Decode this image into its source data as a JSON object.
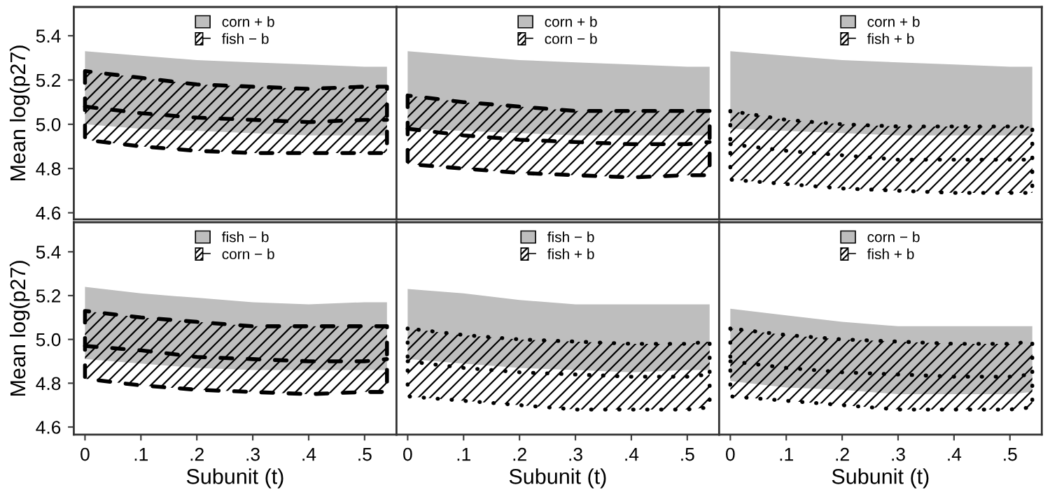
{
  "chart_data": [
    {
      "type": "area",
      "ylabel": "Mean log(p27)",
      "x": [
        0,
        0.1,
        0.2,
        0.3,
        0.4,
        0.5,
        0.54
      ],
      "xlim": [
        -0.02,
        0.557
      ],
      "ylim": [
        4.57,
        5.53
      ],
      "yticks": [
        4.6,
        4.8,
        {
          "value": 5,
          "label": "5.0"
        },
        5.2,
        5.4
      ],
      "tick_labels": "y",
      "legend": "top",
      "series": [
        {
          "name": "corn + b",
          "color": "#bebebe",
          "values": [
            null,
            null,
            null,
            null,
            null,
            null,
            null
          ],
          "upper": [
            5.33,
            5.31,
            5.29,
            5.28,
            5.27,
            5.26,
            5.26
          ],
          "lower": [
            5.0,
            4.98,
            4.97,
            4.96,
            4.95,
            4.95,
            4.95
          ]
        },
        {
          "name": "fish − b",
          "type": "line",
          "color": "#000000",
          "line_style": "dashed",
          "values": [
            5.08,
            5.05,
            5.03,
            5.02,
            5.01,
            5.02,
            5.02
          ],
          "upper": [
            5.24,
            5.21,
            5.18,
            5.17,
            5.16,
            5.17,
            5.17
          ],
          "lower": [
            4.93,
            4.9,
            4.88,
            4.87,
            4.87,
            4.87,
            4.87
          ]
        }
      ]
    },
    {
      "type": "area",
      "x": [
        0,
        0.1,
        0.2,
        0.3,
        0.4,
        0.5,
        0.54
      ],
      "xlim": [
        -0.02,
        0.557
      ],
      "ylim": [
        4.57,
        5.53
      ],
      "tick_labels": false,
      "legend": "top",
      "series": [
        {
          "name": "corn + b",
          "color": "#bebebe",
          "values": [
            null,
            null,
            null,
            null,
            null,
            null,
            null
          ],
          "upper": [
            5.33,
            5.31,
            5.29,
            5.28,
            5.27,
            5.26,
            5.26
          ],
          "lower": [
            4.98,
            4.97,
            4.96,
            4.95,
            4.95,
            4.95,
            4.95
          ]
        },
        {
          "name": "corn − b",
          "type": "line",
          "color": "#000000",
          "line_style": "dashed",
          "values": [
            4.98,
            4.95,
            4.93,
            4.92,
            4.91,
            4.91,
            4.92
          ],
          "upper": [
            5.13,
            5.1,
            5.08,
            5.06,
            5.06,
            5.06,
            5.06
          ],
          "lower": [
            4.82,
            4.8,
            4.78,
            4.77,
            4.76,
            4.77,
            4.77
          ]
        }
      ]
    },
    {
      "type": "area",
      "x": [
        0,
        0.1,
        0.2,
        0.3,
        0.4,
        0.5,
        0.54
      ],
      "xlim": [
        -0.02,
        0.557
      ],
      "ylim": [
        4.57,
        5.53
      ],
      "tick_labels": false,
      "legend": "top",
      "series": [
        {
          "name": "corn + b",
          "color": "#bebebe",
          "values": [
            null,
            null,
            null,
            null,
            null,
            null,
            null
          ],
          "upper": [
            5.33,
            5.31,
            5.29,
            5.28,
            5.27,
            5.26,
            5.26
          ],
          "lower": [
            4.98,
            4.97,
            4.96,
            4.95,
            4.95,
            4.95,
            4.95
          ]
        },
        {
          "name": "fish + b",
          "type": "line",
          "color": "#000000",
          "line_style": "dotted",
          "values": [
            4.91,
            4.88,
            4.86,
            4.84,
            4.84,
            4.84,
            4.84
          ],
          "upper": [
            5.06,
            5.02,
            5.0,
            4.99,
            4.99,
            4.99,
            4.99
          ],
          "lower": [
            4.75,
            4.73,
            4.71,
            4.7,
            4.69,
            4.69,
            4.69
          ]
        }
      ]
    },
    {
      "type": "area",
      "xlabel": "Subunit (t)",
      "ylabel": "Mean log(p27)",
      "x": [
        0,
        0.1,
        0.2,
        0.3,
        0.4,
        0.5,
        0.54
      ],
      "xlim": [
        -0.02,
        0.557
      ],
      "ylim": [
        4.565,
        5.535
      ],
      "yticks": [
        4.6,
        4.8,
        {
          "value": 5,
          "label": "5.0"
        },
        5.2,
        5.4
      ],
      "xticks": [
        0,
        {
          "value": 0.1,
          "label": ".1"
        },
        {
          "value": 0.2,
          "label": ".2"
        },
        {
          "value": 0.3,
          "label": ".3"
        },
        {
          "value": 0.4,
          "label": ".4"
        },
        {
          "value": 0.5,
          "label": ".5"
        }
      ],
      "legend": "top",
      "series": [
        {
          "name": "fish − b",
          "color": "#bebebe",
          "values": [
            null,
            null,
            null,
            null,
            null,
            null,
            null
          ],
          "upper": [
            5.24,
            5.21,
            5.19,
            5.17,
            5.16,
            5.17,
            5.17
          ],
          "lower": [
            4.91,
            4.89,
            4.87,
            4.86,
            4.86,
            4.86,
            4.86
          ]
        },
        {
          "name": "corn − b",
          "type": "line",
          "color": "#000000",
          "line_style": "dashed",
          "values": [
            4.97,
            4.95,
            4.92,
            4.91,
            4.9,
            4.9,
            4.91
          ],
          "upper": [
            5.13,
            5.1,
            5.08,
            5.06,
            5.06,
            5.06,
            5.06
          ],
          "lower": [
            4.82,
            4.79,
            4.77,
            4.76,
            4.75,
            4.76,
            4.76
          ]
        }
      ]
    },
    {
      "type": "area",
      "xlabel": "Subunit (t)",
      "x": [
        0,
        0.1,
        0.2,
        0.3,
        0.4,
        0.5,
        0.54
      ],
      "xlim": [
        -0.02,
        0.557
      ],
      "ylim": [
        4.565,
        5.535
      ],
      "xticks": [
        0,
        {
          "value": 0.1,
          "label": ".1"
        },
        {
          "value": 0.2,
          "label": ".2"
        },
        {
          "value": 0.3,
          "label": ".3"
        },
        {
          "value": 0.4,
          "label": ".4"
        },
        {
          "value": 0.5,
          "label": ".5"
        }
      ],
      "tick_labels": "x",
      "legend": "top",
      "series": [
        {
          "name": "fish − b",
          "color": "#bebebe",
          "values": [
            null,
            null,
            null,
            null,
            null,
            null,
            null
          ],
          "upper": [
            5.23,
            5.21,
            5.18,
            5.16,
            5.16,
            5.16,
            5.16
          ],
          "lower": [
            4.91,
            4.89,
            4.87,
            4.86,
            4.85,
            4.86,
            4.86
          ]
        },
        {
          "name": "fish + b",
          "type": "line",
          "color": "#000000",
          "line_style": "dotted",
          "values": [
            4.9,
            4.87,
            4.85,
            4.84,
            4.83,
            4.83,
            4.84
          ],
          "upper": [
            5.05,
            5.02,
            5.0,
            4.99,
            4.98,
            4.98,
            4.99
          ],
          "lower": [
            4.74,
            4.72,
            4.7,
            4.68,
            4.68,
            4.68,
            4.69
          ]
        }
      ]
    },
    {
      "type": "area",
      "xlabel": "Subunit (t)",
      "x": [
        0,
        0.1,
        0.2,
        0.3,
        0.4,
        0.5,
        0.54
      ],
      "xlim": [
        -0.02,
        0.557
      ],
      "ylim": [
        4.565,
        5.535
      ],
      "xticks": [
        0,
        {
          "value": 0.1,
          "label": ".1"
        },
        {
          "value": 0.2,
          "label": ".2"
        },
        {
          "value": 0.3,
          "label": ".3"
        },
        {
          "value": 0.4,
          "label": ".4"
        },
        {
          "value": 0.5,
          "label": ".5"
        }
      ],
      "tick_labels": "x",
      "legend": "top",
      "series": [
        {
          "name": "corn − b",
          "color": "#bebebe",
          "values": [
            null,
            null,
            null,
            null,
            null,
            null,
            null
          ],
          "upper": [
            5.14,
            5.11,
            5.08,
            5.06,
            5.06,
            5.06,
            5.06
          ],
          "lower": [
            4.81,
            4.78,
            4.77,
            4.75,
            4.75,
            4.75,
            4.76
          ]
        },
        {
          "name": "fish + b",
          "type": "line",
          "color": "#000000",
          "line_style": "dotted",
          "values": [
            4.9,
            4.87,
            4.85,
            4.84,
            4.83,
            4.83,
            4.84
          ],
          "upper": [
            5.05,
            5.02,
            5.0,
            4.99,
            4.98,
            4.98,
            4.99
          ],
          "lower": [
            4.74,
            4.72,
            4.7,
            4.68,
            4.68,
            4.68,
            4.69
          ]
        }
      ]
    }
  ]
}
